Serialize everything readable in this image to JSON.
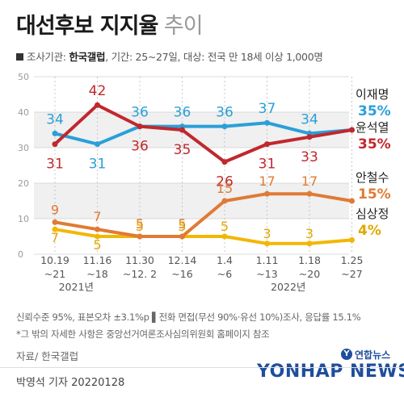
{
  "header": {
    "title_bold": "대선후보 지지율",
    "title_light": "추이",
    "survey_label": "조사기관:",
    "survey_org": "한국갤럽",
    "survey_rest": ", 기간: 25~27일, 대상: 전국 만 18세 이상 1,000명"
  },
  "notes": {
    "line1": "신뢰수준 95%, 표본오차 ±3.1%p  ▌전화 면접(무선 90%·유선 10%)조사, 응답률 15.1%",
    "line2": "*그 밖의 자세한 사항은 중앙선거여론조사심의위원회 홈페이지 참조"
  },
  "source": "자료/ 한국갤럽",
  "byline": "박영석 기자  20220128",
  "logo": {
    "badge": "Y",
    "korean": "연합뉴스",
    "english": "YONHAP NEWS"
  },
  "chart_data": {
    "type": "line",
    "categories": [
      "10.19\n~21",
      "11.16\n~18",
      "11.30\n~12. 2",
      "12.14\n~16",
      "1.4\n~6",
      "1.11\n~13",
      "1.18\n~20",
      "1.25\n~27"
    ],
    "year_labels": [
      {
        "text": "2021년",
        "index": 0.5
      },
      {
        "text": "2022년",
        "index": 5.5
      }
    ],
    "ylim": [
      0,
      50
    ],
    "yticks": [
      0,
      10,
      20,
      30,
      40,
      50
    ],
    "grid": true,
    "series": [
      {
        "name": "이재명",
        "values": [
          34,
          31,
          36,
          36,
          36,
          37,
          34,
          35
        ],
        "color": "#2a9fd8",
        "final_label": "35%"
      },
      {
        "name": "윤석열",
        "values": [
          31,
          42,
          36,
          35,
          26,
          31,
          33,
          35
        ],
        "color": "#c0282d",
        "final_label": "35%"
      },
      {
        "name": "안철수",
        "values": [
          9,
          7,
          5,
          5,
          15,
          17,
          17,
          15
        ],
        "color": "#e07a35",
        "final_label": "15%"
      },
      {
        "name": "심상정",
        "values": [
          7,
          5,
          5,
          5,
          5,
          3,
          3,
          4
        ],
        "color": "#f2b705",
        "final_label": "4%"
      }
    ],
    "label_colors": [
      "#2a9fd8",
      "#c0282d",
      "#e07a35",
      "#e0a800"
    ]
  }
}
